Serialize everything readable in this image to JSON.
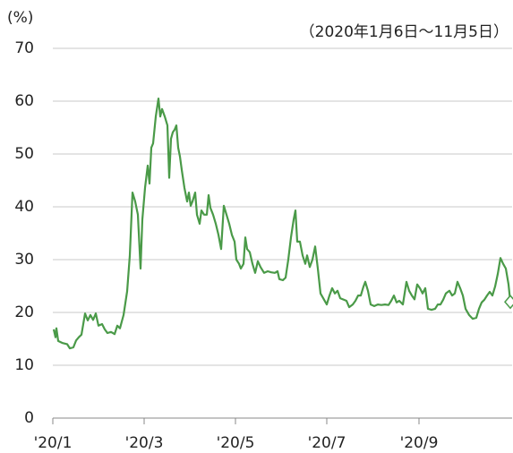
{
  "chart_data": {
    "type": "line",
    "y_label": "(%)",
    "subtitle": "（2020年1月6日～11月5日）",
    "xlim": [
      0,
      513
    ],
    "xticks": [
      {
        "value": 0,
        "label": "'20/1"
      },
      {
        "value": 102,
        "label": "'20/3"
      },
      {
        "value": 204,
        "label": "'20/5"
      },
      {
        "value": 306,
        "label": "'20/7"
      },
      {
        "value": 409,
        "label": "'20/9"
      }
    ],
    "ylim": [
      0,
      70
    ],
    "yticks": [
      0,
      10,
      20,
      30,
      40,
      50,
      60,
      70
    ],
    "grid": true,
    "series": [
      {
        "color": "#4a9a48",
        "x": [
          1,
          3,
          4,
          6,
          11,
          16,
          19,
          23,
          26,
          29,
          32,
          36,
          39,
          42,
          45,
          48,
          51,
          55,
          58,
          61,
          65,
          69,
          72,
          75,
          79,
          83,
          86,
          89,
          92,
          95,
          98,
          100,
          103,
          106,
          108,
          110,
          112,
          115,
          118,
          120,
          122,
          125,
          128,
          130,
          132,
          134,
          136,
          138,
          140,
          142,
          144,
          147,
          150,
          152,
          154,
          156,
          159,
          161,
          164,
          166,
          169,
          172,
          174,
          176,
          179,
          182,
          185,
          188,
          191,
          194,
          197,
          200,
          203,
          205,
          208,
          210,
          213,
          215,
          217,
          220,
          223,
          226,
          229,
          232,
          236,
          240,
          244,
          248,
          251,
          253,
          257,
          260,
          263,
          266,
          269,
          271,
          273,
          276,
          279,
          282,
          284,
          287,
          290,
          293,
          296,
          299,
          303,
          306,
          309,
          312,
          315,
          318,
          321,
          325,
          328,
          331,
          335,
          338,
          341,
          344,
          347,
          349,
          352,
          355,
          359,
          363,
          367,
          371,
          375,
          378,
          381,
          384,
          387,
          391,
          395,
          398,
          401,
          404,
          407,
          410,
          413,
          416,
          419,
          423,
          427,
          430,
          433,
          436,
          439,
          443,
          446,
          449,
          452,
          455,
          458,
          461,
          465,
          469,
          473,
          476,
          479,
          482,
          485,
          488,
          491,
          494,
          497,
          500,
          503,
          506,
          509,
          511
        ],
        "values": [
          16.8,
          15.3,
          17,
          14.6,
          14.2,
          14,
          13.2,
          13.4,
          14.7,
          15.3,
          15.8,
          19.8,
          18.5,
          19.5,
          18.6,
          19.8,
          17.5,
          17.8,
          16.8,
          16.1,
          16.3,
          15.9,
          17.5,
          17,
          19.5,
          24,
          30.8,
          42.7,
          41,
          38.5,
          28.3,
          37.6,
          43.6,
          47.8,
          44.4,
          51.2,
          52,
          57.1,
          60.5,
          57.1,
          58.5,
          57.1,
          55.4,
          45.5,
          52.9,
          54.1,
          54.6,
          55.4,
          51.2,
          49.5,
          47,
          43.6,
          41,
          42.7,
          40.2,
          41,
          42.7,
          38.5,
          36.8,
          39.3,
          38.5,
          38.5,
          42.2,
          39.8,
          38.5,
          36.8,
          34.7,
          32,
          40.2,
          38.5,
          36.8,
          34.7,
          33.4,
          30,
          29.2,
          28.3,
          29.2,
          34.2,
          32,
          31.4,
          29.2,
          27.5,
          29.7,
          28.6,
          27.5,
          27.8,
          27.6,
          27.5,
          27.8,
          26.3,
          26.1,
          26.6,
          30,
          34.2,
          37.6,
          39.3,
          33.4,
          33.4,
          30.8,
          29.2,
          30.8,
          28.6,
          30,
          32.5,
          28.3,
          23.6,
          22.4,
          21.5,
          23.2,
          24.6,
          23.6,
          24.1,
          22.7,
          22.4,
          22.2,
          21,
          21.5,
          22.2,
          23.2,
          23.2,
          24.9,
          25.8,
          24.1,
          21.5,
          21.2,
          21.5,
          21.4,
          21.5,
          21.4,
          22.2,
          23.2,
          21.9,
          22.2,
          21.5,
          25.8,
          24.1,
          23.2,
          22.5,
          25.3,
          24.6,
          23.6,
          24.6,
          20.7,
          20.5,
          20.7,
          21.5,
          21.5,
          22.4,
          23.6,
          24.1,
          23.2,
          23.6,
          25.8,
          24.6,
          23.2,
          20.7,
          19.5,
          18.8,
          19,
          20.7,
          21.9,
          22.4,
          23.2,
          23.9,
          23.2,
          24.9,
          27.3,
          30.3,
          29.2,
          28.3,
          25.3,
          22
        ]
      }
    ]
  }
}
